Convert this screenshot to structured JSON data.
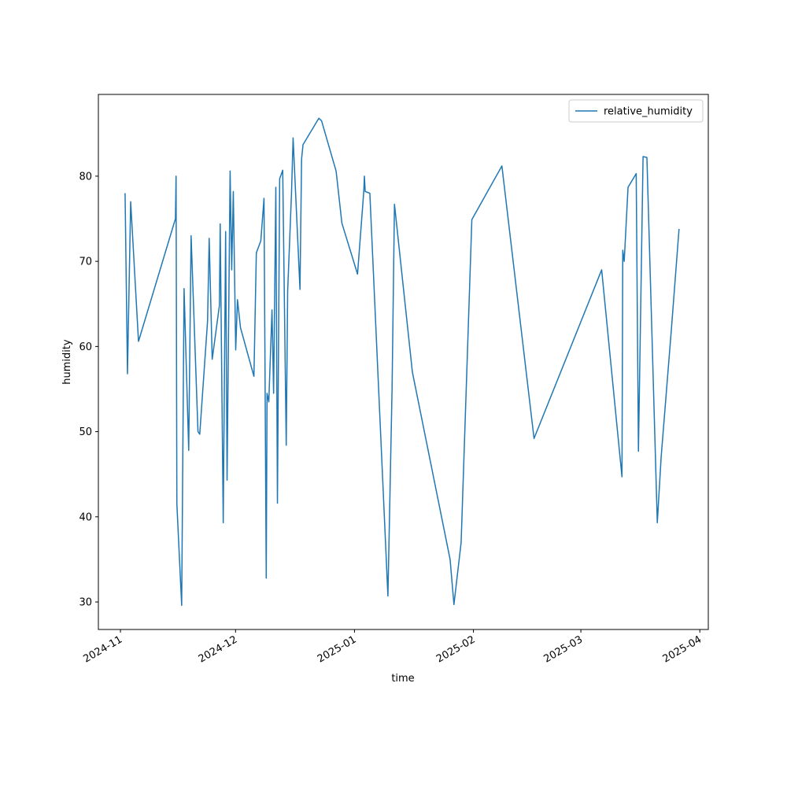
{
  "chart_data": {
    "type": "line",
    "xlabel": "time",
    "ylabel": "humidity",
    "x": [
      "2024-11-02T05:00",
      "2024-11-02T20:00",
      "2024-11-03T16:00",
      "2024-11-05T17:00",
      "2024-11-15T08:00",
      "2024-11-15T12:00",
      "2024-11-15T17:00",
      "2024-11-16T23:00",
      "2024-11-17T14:00",
      "2024-11-18T19:00",
      "2024-11-19T10:00",
      "2024-11-21T05:00",
      "2024-11-21T16:00",
      "2024-11-23T17:00",
      "2024-11-24T03:00",
      "2024-11-24T22:00",
      "2024-11-26T19:00",
      "2024-11-27T00:00",
      "2024-11-27T19:00",
      "2024-11-28T10:00",
      "2024-11-28T19:00",
      "2024-11-29T14:00",
      "2024-11-30T00:00",
      "2024-11-30T10:00",
      "2024-12-01T01:00",
      "2024-12-01T12:00",
      "2024-12-02T07:00",
      "2024-12-05T19:00",
      "2024-12-06T10:00",
      "2024-12-07T14:00",
      "2024-12-08T10:00",
      "2024-12-09T00:00",
      "2024-12-09T05:00",
      "2024-12-09T16:00",
      "2024-12-10T12:00",
      "2024-12-10T22:00",
      "2024-12-11T12:00",
      "2024-12-11T22:00",
      "2024-12-12T12:00",
      "2024-12-13T07:00",
      "2024-12-14T05:00",
      "2024-12-14T14:00",
      "2024-12-15T14:00",
      "2024-12-16T00:00",
      "2024-12-17T19:00",
      "2024-12-18T05:00",
      "2024-12-18T14:00",
      "2024-12-22T17:00",
      "2024-12-23T10:00",
      "2024-12-27T05:00",
      "2024-12-28T17:00",
      "2025-01-01T19:00",
      "2025-01-03T10:00",
      "2025-01-03T14:00",
      "2025-01-03T19:00",
      "2025-01-05T00:00",
      "2025-01-09T17:00",
      "2025-01-10T19:00",
      "2025-01-11T10:00",
      "2025-01-16T02:00",
      "2025-01-25T22:00",
      "2025-01-26T22:00",
      "2025-01-28T19:00",
      "2025-01-31T14:00",
      "2025-02-08T10:00",
      "2025-02-16T19:00",
      "2025-03-06T10:00",
      "2025-03-11T17:00",
      "2025-03-11T22:00",
      "2025-03-12T07:00",
      "2025-03-13T07:00",
      "2025-03-15T10:00",
      "2025-03-16T00:00",
      "2025-03-17T05:00",
      "2025-03-18T05:00",
      "2025-03-20T22:00",
      "2025-03-21T22:00",
      "2025-03-24T14:00",
      "2025-03-26T14:00"
    ],
    "series": [
      {
        "name": "relative_humidity",
        "color": "#1f77b4",
        "values": [
          78,
          56.8,
          77,
          60.6,
          75,
          80,
          41.5,
          29.6,
          66.8,
          47.8,
          73,
          50,
          49.7,
          63,
          72.7,
          58.5,
          64.8,
          74.4,
          39.3,
          73.5,
          44.3,
          80.6,
          69,
          78.2,
          59.6,
          65.5,
          62.2,
          56.5,
          71,
          72.4,
          77.4,
          32.8,
          54.5,
          53.5,
          64.3,
          54.5,
          78.7,
          41.6,
          79.7,
          80.7,
          48.4,
          66.5,
          78,
          84.5,
          66.7,
          82,
          83.7,
          86.8,
          86.5,
          80.6,
          74.5,
          68.5,
          78.2,
          80,
          78.2,
          78,
          30.7,
          55,
          76.7,
          57,
          35,
          29.7,
          37,
          74.9,
          81.2,
          49.2,
          69,
          44.7,
          71.3,
          70,
          78.7,
          80.3,
          47.7,
          82.3,
          82.2,
          39.3,
          47,
          62,
          73.8
        ]
      }
    ],
    "xlim": [
      "2024-10-26T06:00",
      "2025-04-03T05:00"
    ],
    "xticks": [
      {
        "value": "2024-11-01T00:00",
        "label": "2024-11"
      },
      {
        "value": "2024-12-01T00:00",
        "label": "2024-12"
      },
      {
        "value": "2025-01-01T00:00",
        "label": "2025-01"
      },
      {
        "value": "2025-02-01T00:00",
        "label": "2025-02"
      },
      {
        "value": "2025-03-01T00:00",
        "label": "2025-03"
      },
      {
        "value": "2025-04-01T00:00",
        "label": "2025-04"
      }
    ],
    "ylim": [
      26.77,
      89.6
    ],
    "yticks": [
      30,
      40,
      50,
      60,
      70,
      80
    ],
    "grid": false,
    "legend": "upper-right"
  }
}
